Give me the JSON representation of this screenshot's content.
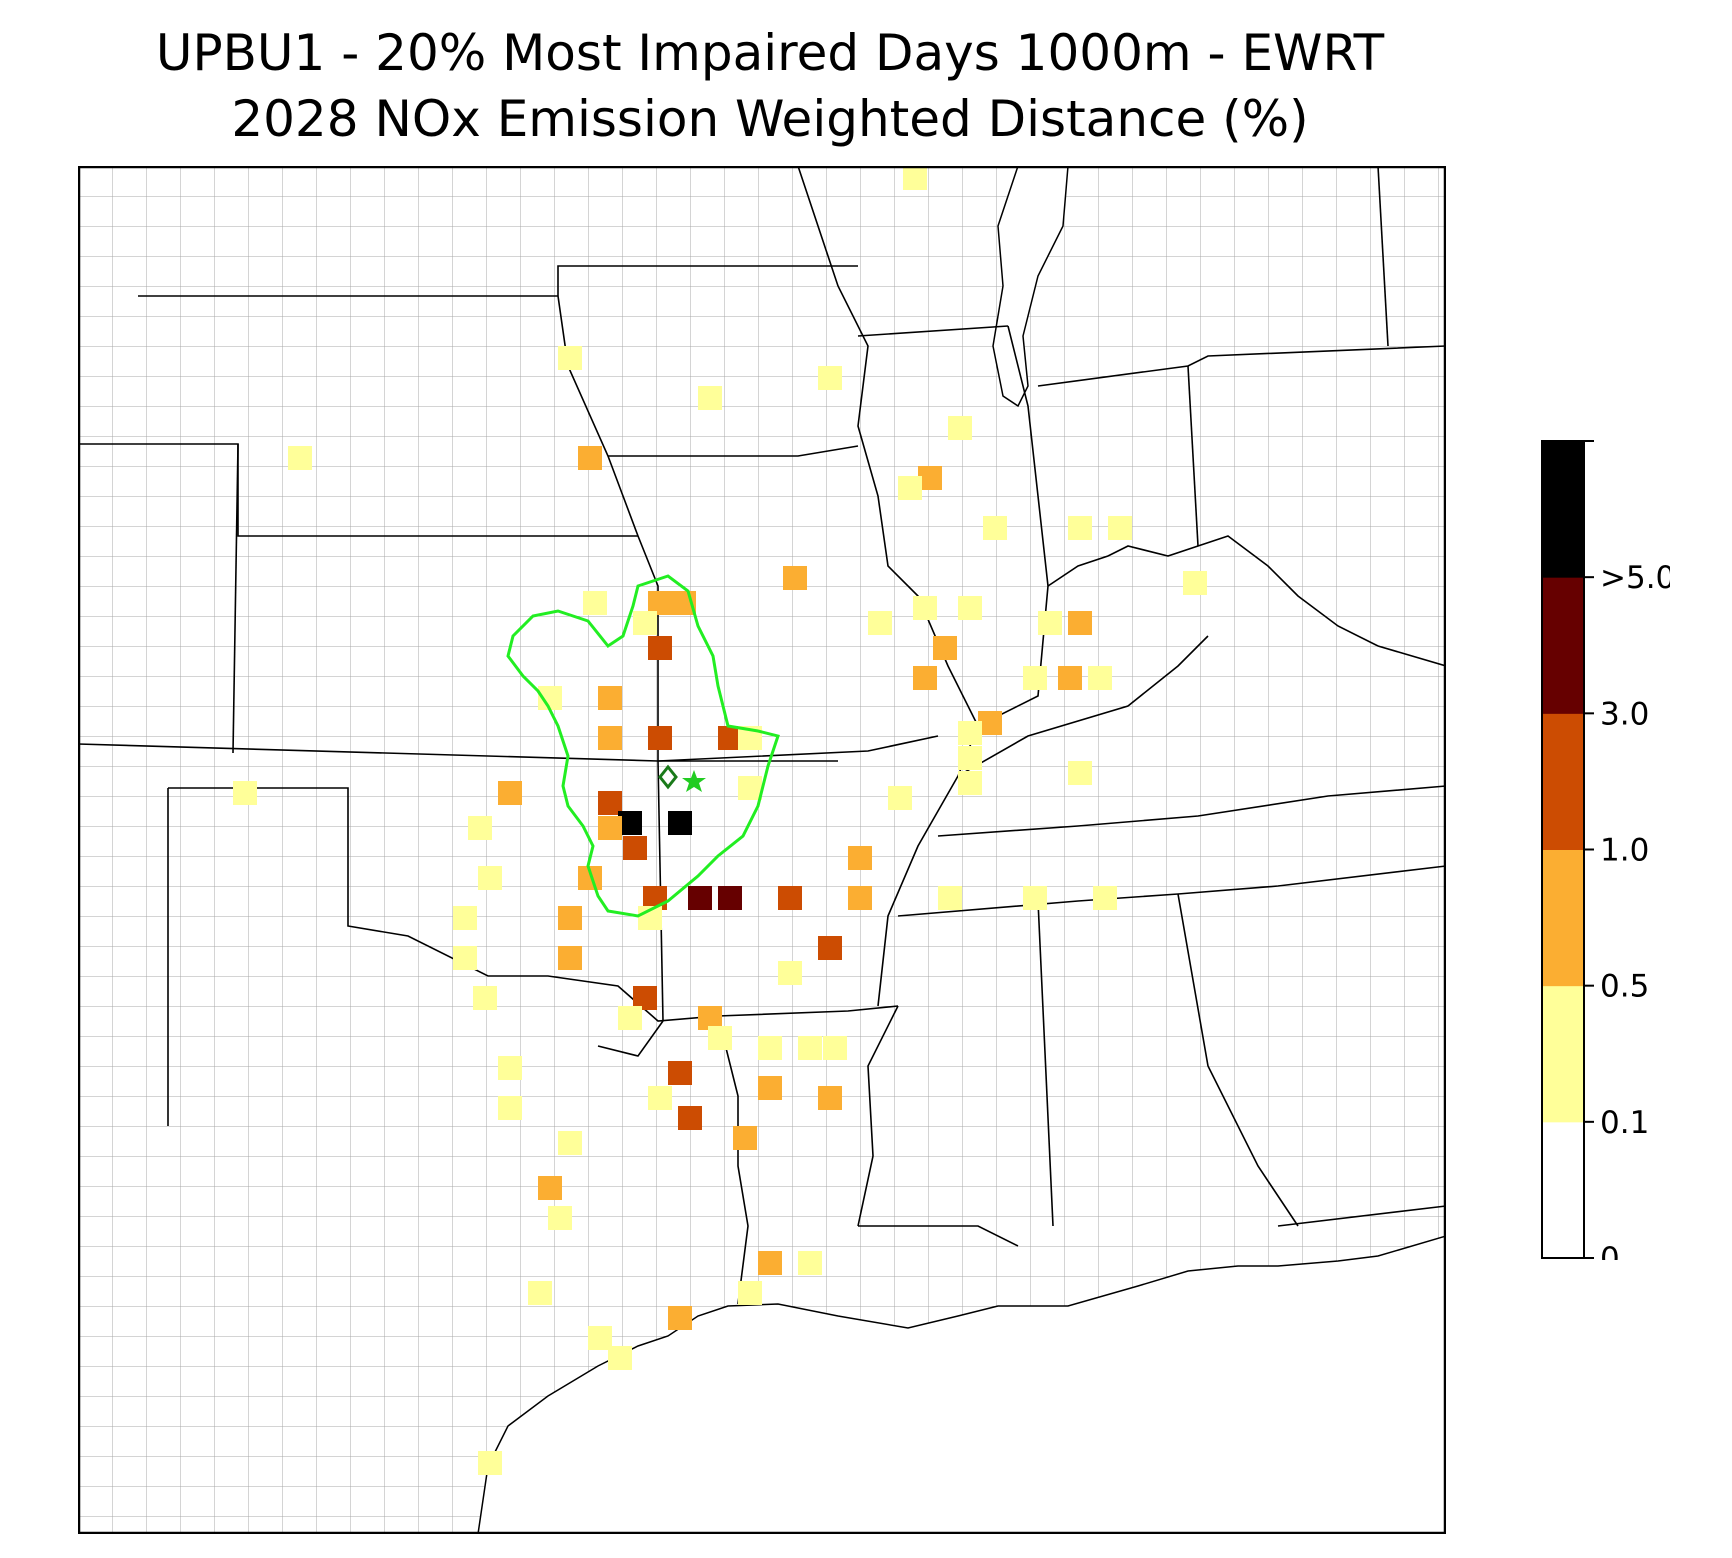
{
  "title": {
    "line1": "UPBU1 - 20% Most Impaired Days 1000m - EWRT",
    "line2": "2028 NOx Emission Weighted Distance (%)"
  },
  "colors": {
    "county_lines": "#9a9a9a",
    "state_lines": "#000000",
    "contour": "#22ee22",
    "site_marker": "#1a7a1a",
    "star": "#22cc22"
  },
  "colorbar": {
    "ticks": [
      "0",
      "0.1",
      "0.5",
      "1.0",
      "3.0",
      ">5.0"
    ],
    "bins": [
      {
        "range": "0-0.1",
        "color": "#ffffff"
      },
      {
        "range": "0.1-0.5",
        "color": "#ffff99"
      },
      {
        "range": "0.5-1.0",
        "color": "#fbae32"
      },
      {
        "range": "1.0-3.0",
        "color": "#cc4c02"
      },
      {
        "range": "3.0-5.0",
        "color": "#660000"
      },
      {
        "range": ">5.0",
        "color": "#000000"
      }
    ]
  },
  "markers": {
    "site_marker": "diamond",
    "star_marker": "star"
  }
}
